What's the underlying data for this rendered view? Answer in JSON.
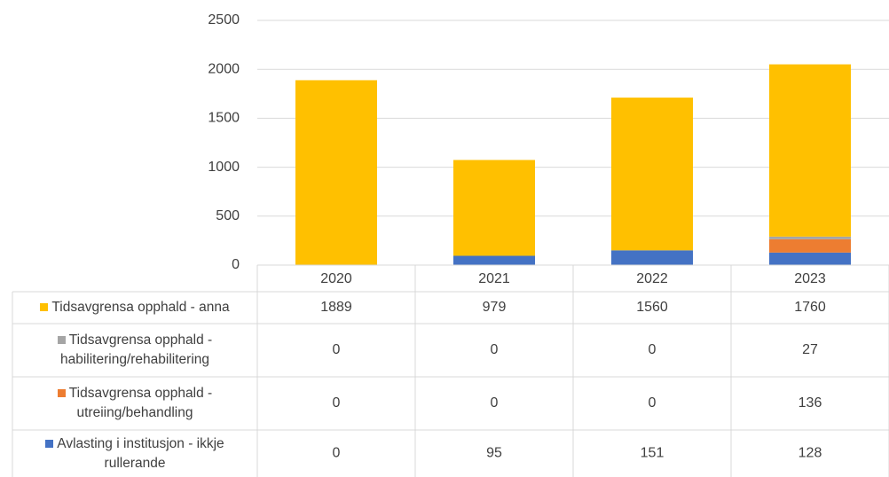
{
  "chart_data": {
    "type": "stacked-bar",
    "categories": [
      "2020",
      "2021",
      "2022",
      "2023"
    ],
    "series": [
      {
        "name": "Avlasting i institusjon - ikkje rullerande",
        "color": "#4472c4",
        "values": [
          0,
          95,
          151,
          128
        ]
      },
      {
        "name": "Tidsavgrensa opphald - utreiing/behandling",
        "color": "#ed7d31",
        "values": [
          0,
          0,
          0,
          136
        ]
      },
      {
        "name": "Tidsavgrensa opphald - habilitering/rehabilitering",
        "color": "#a5a5a5",
        "values": [
          0,
          0,
          0,
          27
        ]
      },
      {
        "name": "Tidsavgrensa opphald - anna",
        "color": "#ffc000",
        "values": [
          1889,
          979,
          1560,
          1760
        ]
      }
    ],
    "ylim": [
      0,
      2500
    ],
    "yticks": [
      0,
      500,
      1000,
      1500,
      2000,
      2500
    ],
    "grid": true,
    "legend": "data-table"
  }
}
